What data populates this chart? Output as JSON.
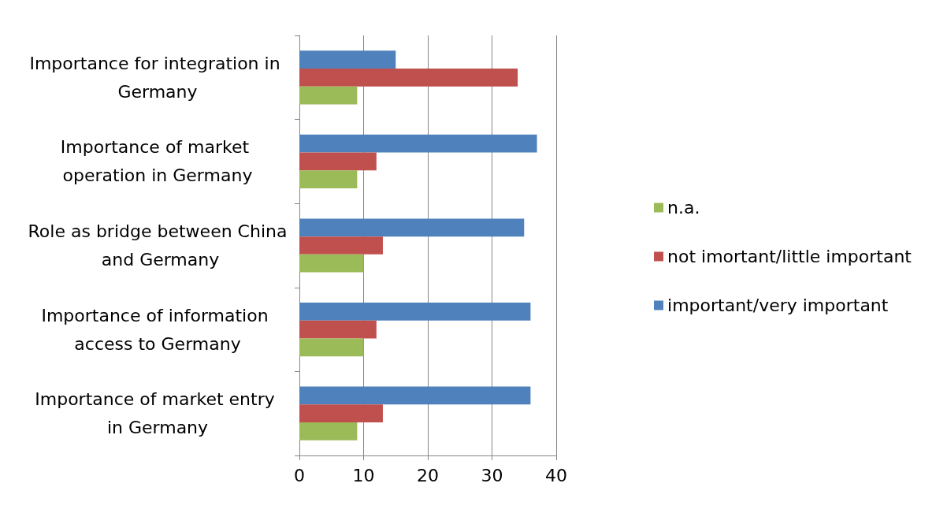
{
  "chart_data": {
    "type": "bar",
    "orientation": "horizontal",
    "categories": [
      "Importance for integration in Germany",
      "Importance of market operation in Germany",
      "Role as bridge between China and Germany",
      "Importance of information access to Germany",
      "Importance of market entry in Germany"
    ],
    "series": [
      {
        "name": "important/very important",
        "color": "#4f81bd",
        "values": [
          15,
          37,
          35,
          36,
          36
        ]
      },
      {
        "name": "not imortant/little important",
        "color": "#c0504d",
        "values": [
          34,
          12,
          13,
          12,
          13
        ]
      },
      {
        "name": "n.a.",
        "color": "#9bbb59",
        "values": [
          9,
          9,
          10,
          10,
          9
        ]
      }
    ],
    "xlim": [
      0,
      40
    ],
    "xticks": [
      0,
      10,
      20,
      30,
      40
    ],
    "grid": "x",
    "legend": "right"
  }
}
